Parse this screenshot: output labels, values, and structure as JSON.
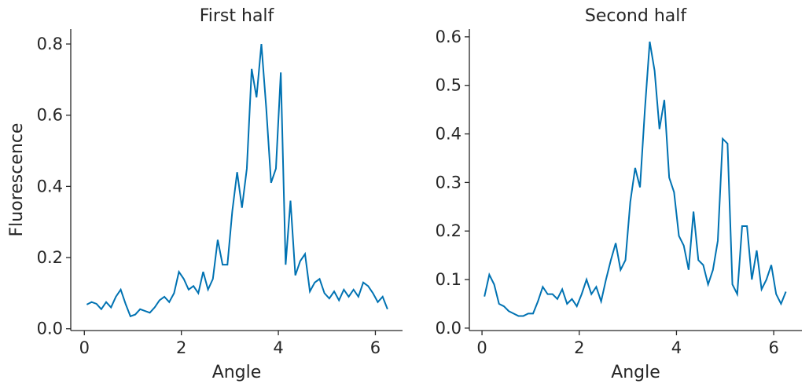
{
  "chart_data": [
    {
      "type": "line",
      "title": "First half",
      "xlabel": "Angle",
      "ylabel": "Fluorescence",
      "x": [
        0.05,
        0.15,
        0.25,
        0.35,
        0.45,
        0.55,
        0.65,
        0.75,
        0.85,
        0.95,
        1.05,
        1.15,
        1.25,
        1.35,
        1.45,
        1.55,
        1.65,
        1.75,
        1.85,
        1.95,
        2.05,
        2.15,
        2.25,
        2.35,
        2.45,
        2.55,
        2.65,
        2.75,
        2.85,
        2.95,
        3.05,
        3.15,
        3.25,
        3.35,
        3.45,
        3.55,
        3.65,
        3.75,
        3.85,
        3.95,
        4.05,
        4.15,
        4.25,
        4.35,
        4.45,
        4.55,
        4.65,
        4.75,
        4.85,
        4.95,
        5.05,
        5.15,
        5.25,
        5.35,
        5.45,
        5.55,
        5.65,
        5.75,
        5.85,
        5.95,
        6.05,
        6.15,
        6.25
      ],
      "values": [
        0.068,
        0.075,
        0.07,
        0.055,
        0.075,
        0.06,
        0.09,
        0.11,
        0.07,
        0.035,
        0.04,
        0.055,
        0.05,
        0.045,
        0.06,
        0.08,
        0.09,
        0.075,
        0.1,
        0.16,
        0.14,
        0.11,
        0.12,
        0.1,
        0.16,
        0.11,
        0.14,
        0.25,
        0.18,
        0.18,
        0.33,
        0.44,
        0.34,
        0.45,
        0.73,
        0.65,
        0.8,
        0.62,
        0.41,
        0.45,
        0.72,
        0.18,
        0.36,
        0.15,
        0.19,
        0.21,
        0.105,
        0.13,
        0.14,
        0.1,
        0.085,
        0.105,
        0.08,
        0.11,
        0.09,
        0.11,
        0.09,
        0.13,
        0.12,
        0.1,
        0.075,
        0.09,
        0.055
      ],
      "color": "#0072b2",
      "xlim": [
        -0.28,
        6.56
      ],
      "ylim": [
        -0.005,
        0.842
      ],
      "xticks": [
        0,
        2,
        4,
        6
      ],
      "yticks": [
        {
          "value": 0,
          "label": "0.0"
        },
        0.2,
        0.4,
        0.6,
        0.8
      ]
    },
    {
      "type": "line",
      "title": "Second half",
      "xlabel": "Angle",
      "x": [
        0.05,
        0.15,
        0.25,
        0.35,
        0.45,
        0.55,
        0.65,
        0.75,
        0.85,
        0.95,
        1.05,
        1.15,
        1.25,
        1.35,
        1.45,
        1.55,
        1.65,
        1.75,
        1.85,
        1.95,
        2.05,
        2.15,
        2.25,
        2.35,
        2.45,
        2.55,
        2.65,
        2.75,
        2.85,
        2.95,
        3.05,
        3.15,
        3.25,
        3.35,
        3.45,
        3.55,
        3.65,
        3.75,
        3.85,
        3.95,
        4.05,
        4.15,
        4.25,
        4.35,
        4.45,
        4.55,
        4.65,
        4.75,
        4.85,
        4.95,
        5.05,
        5.15,
        5.25,
        5.35,
        5.45,
        5.55,
        5.65,
        5.75,
        5.85,
        5.95,
        6.05,
        6.15,
        6.25
      ],
      "values": [
        0.065,
        0.11,
        0.09,
        0.05,
        0.045,
        0.035,
        0.03,
        0.025,
        0.025,
        0.03,
        0.03,
        0.055,
        0.085,
        0.07,
        0.07,
        0.06,
        0.08,
        0.05,
        0.06,
        0.045,
        0.07,
        0.1,
        0.07,
        0.085,
        0.055,
        0.1,
        0.14,
        0.175,
        0.12,
        0.14,
        0.26,
        0.33,
        0.29,
        0.45,
        0.59,
        0.53,
        0.41,
        0.47,
        0.31,
        0.28,
        0.19,
        0.17,
        0.12,
        0.24,
        0.14,
        0.13,
        0.09,
        0.12,
        0.18,
        0.39,
        0.38,
        0.09,
        0.07,
        0.21,
        0.21,
        0.1,
        0.16,
        0.08,
        0.1,
        0.13,
        0.07,
        0.05,
        0.075
      ],
      "color": "#0072b2",
      "xlim": [
        -0.26,
        6.58
      ],
      "ylim": [
        -0.005,
        0.616
      ],
      "xticks": [
        0,
        2,
        4,
        6
      ],
      "yticks": [
        {
          "value": 0,
          "label": "0.0"
        },
        0.1,
        0.2,
        0.3,
        0.4,
        0.5,
        0.6
      ]
    }
  ]
}
